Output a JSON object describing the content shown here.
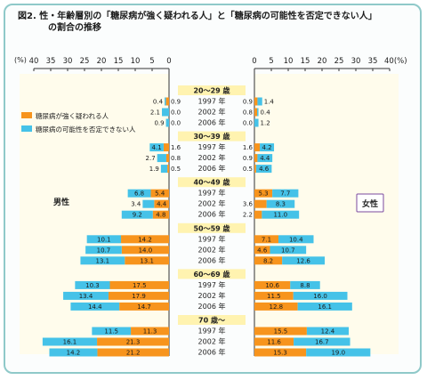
{
  "title_line1": "図2. 性・年齢層別の「糖尿病が強く疑われる人」と「糖尿病の可能性を否定できない人」",
  "title_line2": "の割合の推移",
  "chart_data": {
    "type": "bar",
    "orientation": "horizontal",
    "layout": "back-to-back stacked",
    "unit_label": "(%)",
    "x_ticks": [
      "40",
      "35",
      "30",
      "25",
      "20",
      "15",
      "10",
      "5",
      "0"
    ],
    "x_ticks_right": [
      "0",
      "5",
      "10",
      "15",
      "20",
      "25",
      "30",
      "35",
      "40(%)"
    ],
    "xlim": [
      0,
      40
    ],
    "legend": {
      "position": "left",
      "strong": "糖尿病が強く疑われる人",
      "possible": "糖尿病の可能性を否定できない人"
    },
    "colors": {
      "strong": "#f7941d",
      "possible": "#45c2e8",
      "age_band": "#fff3b0",
      "panel": "#fffcec"
    },
    "side_labels": {
      "male": "男性",
      "female": "女性"
    },
    "groups": [
      {
        "age": "20～29 歳",
        "rows": [
          {
            "year": "1997 年",
            "male": {
              "strong": 0.9,
              "possible": 0.4
            },
            "female": {
              "strong": 0.9,
              "possible": 1.4
            }
          },
          {
            "year": "2002 年",
            "male": {
              "strong": 0.0,
              "possible": 2.1
            },
            "female": {
              "strong": 0.8,
              "possible": 0.4
            }
          },
          {
            "year": "2006 年",
            "male": {
              "strong": 0.0,
              "possible": 0.9
            },
            "female": {
              "strong": 0.0,
              "possible": 1.2
            }
          }
        ]
      },
      {
        "age": "30～39 歳",
        "rows": [
          {
            "year": "1997 年",
            "male": {
              "strong": 1.6,
              "possible": 4.1
            },
            "female": {
              "strong": 1.6,
              "possible": 4.2
            }
          },
          {
            "year": "2002 年",
            "male": {
              "strong": 0.8,
              "possible": 2.7
            },
            "female": {
              "strong": 0.9,
              "possible": 4.4
            }
          },
          {
            "year": "2006 年",
            "male": {
              "strong": 0.5,
              "possible": 1.9
            },
            "female": {
              "strong": 0.5,
              "possible": 4.6
            }
          }
        ]
      },
      {
        "age": "40～49 歳",
        "rows": [
          {
            "year": "1997 年",
            "male": {
              "strong": 5.4,
              "possible": 6.8
            },
            "female": {
              "strong": 5.3,
              "possible": 7.7
            }
          },
          {
            "year": "2002 年",
            "male": {
              "strong": 4.4,
              "possible": 3.4
            },
            "female": {
              "strong": 3.6,
              "possible": 8.3
            }
          },
          {
            "year": "2006 年",
            "male": {
              "strong": 4.8,
              "possible": 9.2
            },
            "female": {
              "strong": 2.2,
              "possible": 11.0
            }
          }
        ]
      },
      {
        "age": "50～59 歳",
        "rows": [
          {
            "year": "1997 年",
            "male": {
              "strong": 14.2,
              "possible": 10.1
            },
            "female": {
              "strong": 7.1,
              "possible": 10.4
            }
          },
          {
            "year": "2002 年",
            "male": {
              "strong": 14.0,
              "possible": 10.7
            },
            "female": {
              "strong": 4.6,
              "possible": 10.7
            }
          },
          {
            "year": "2006 年",
            "male": {
              "strong": 13.1,
              "possible": 13.1
            },
            "female": {
              "strong": 8.2,
              "possible": 12.6
            }
          }
        ]
      },
      {
        "age": "60～69 歳",
        "rows": [
          {
            "year": "1997 年",
            "male": {
              "strong": 17.5,
              "possible": 10.3
            },
            "female": {
              "strong": 10.6,
              "possible": 8.8
            }
          },
          {
            "year": "2002 年",
            "male": {
              "strong": 17.9,
              "possible": 13.4
            },
            "female": {
              "strong": 11.5,
              "possible": 16.0
            }
          },
          {
            "year": "2006 年",
            "male": {
              "strong": 14.7,
              "possible": 14.4
            },
            "female": {
              "strong": 12.8,
              "possible": 16.1
            }
          }
        ]
      },
      {
        "age": "70 歳～",
        "rows": [
          {
            "year": "1997 年",
            "male": {
              "strong": 11.3,
              "possible": 11.5
            },
            "female": {
              "strong": 15.5,
              "possible": 12.4
            }
          },
          {
            "year": "2002 年",
            "male": {
              "strong": 21.3,
              "possible": 16.1
            },
            "female": {
              "strong": 11.6,
              "possible": 16.7
            }
          },
          {
            "year": "2006 年",
            "male": {
              "strong": 21.2,
              "possible": 14.2
            },
            "female": {
              "strong": 15.3,
              "possible": 19.0
            }
          }
        ]
      }
    ]
  }
}
